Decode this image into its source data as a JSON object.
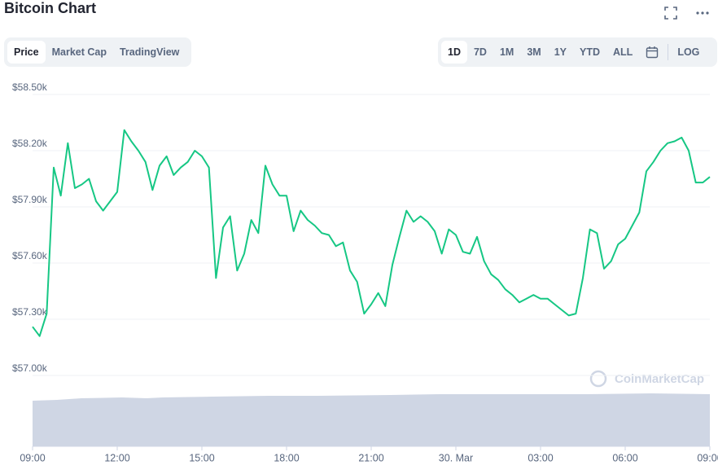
{
  "header": {
    "title": "Bitcoin Chart"
  },
  "tabs": [
    "Price",
    "Market Cap",
    "TradingView"
  ],
  "ranges": [
    "1D",
    "7D",
    "1M",
    "3M",
    "1Y",
    "YTD",
    "ALL"
  ],
  "log_button": "LOG",
  "watermark": "CoinMarketCap",
  "chart_data": {
    "type": "line",
    "color": "#16c784",
    "grid": true,
    "categories": [
      "09:00",
      null,
      null,
      null,
      null,
      null,
      null,
      null,
      null,
      null,
      null,
      null,
      "12:00",
      null,
      null,
      null,
      null,
      null,
      null,
      null,
      null,
      null,
      null,
      null,
      "15:00",
      null,
      null,
      null,
      null,
      null,
      null,
      null,
      null,
      null,
      null,
      null,
      "18:00",
      null,
      null,
      null,
      null,
      null,
      null,
      null,
      null,
      null,
      null,
      null,
      "21:00",
      null,
      null,
      null,
      null,
      null,
      null,
      null,
      null,
      null,
      null,
      null,
      "30. Mar",
      null,
      null,
      null,
      null,
      null,
      null,
      null,
      null,
      null,
      null,
      null,
      "03:00",
      null,
      null,
      null,
      null,
      null,
      null,
      null,
      null,
      null,
      null,
      null,
      "06:00",
      null,
      null,
      null,
      null,
      null,
      null,
      null,
      null,
      null,
      null,
      null,
      "09:00"
    ],
    "values": [
      57260,
      57210,
      57330,
      58110,
      57960,
      58240,
      58000,
      58020,
      58050,
      57930,
      57880,
      57930,
      57980,
      58310,
      58250,
      58200,
      58140,
      57990,
      58120,
      58170,
      58070,
      58110,
      58140,
      58200,
      58170,
      58110,
      57520,
      57790,
      57850,
      57560,
      57650,
      57830,
      57760,
      58120,
      58020,
      57960,
      57960,
      57770,
      57880,
      57830,
      57800,
      57760,
      57750,
      57690,
      57710,
      57560,
      57500,
      57330,
      57380,
      57440,
      57370,
      57590,
      57740,
      57880,
      57820,
      57850,
      57820,
      57770,
      57650,
      57780,
      57750,
      57660,
      57650,
      57740,
      57610,
      57540,
      57510,
      57460,
      57430,
      57390,
      57410,
      57430,
      57410,
      57410,
      57380,
      57350,
      57320,
      57330,
      57520,
      57780,
      57760,
      57570,
      57610,
      57700,
      57730,
      57800,
      57870,
      58090,
      58140,
      58200,
      58240,
      58250,
      58270,
      58200,
      58030,
      58030,
      58060
    ],
    "ylim": [
      57000,
      58500
    ],
    "yticks": [
      {
        "value": 57000,
        "label": "$57.00k"
      },
      {
        "value": 57300,
        "label": "$57.30k"
      },
      {
        "value": 57600,
        "label": "$57.60k"
      },
      {
        "value": 57900,
        "label": "$57.90k"
      },
      {
        "value": 58200,
        "label": "$58.20k"
      },
      {
        "value": 58500,
        "label": "$58.50k"
      }
    ]
  }
}
